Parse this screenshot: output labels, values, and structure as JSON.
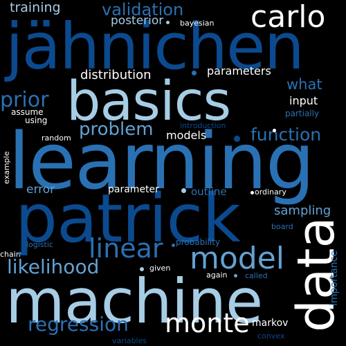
{
  "canvas": {
    "background": "#000000"
  },
  "palette": {
    "darkest": "#08306b",
    "dark": "#0b4a8f",
    "mid": "#2a71b3",
    "light": "#63a2d3",
    "pale": "#a7cde5",
    "white": "#ffffff"
  },
  "words": {
    "learning": "learning",
    "machine": "machine",
    "patrick": "patrick",
    "jahnichen": "jähnichen",
    "basics": "basics",
    "data": "data",
    "carlo": "carlo",
    "model": "model",
    "monte": "monte",
    "linear": "linear",
    "likelihood": "likelihood",
    "regression": "regression",
    "prior": "prior",
    "problem": "problem",
    "function": "function",
    "validation": "validation",
    "training": "training",
    "distribution": "distribution",
    "what": "what",
    "sampling": "sampling",
    "posterior": "posterior",
    "parameters": "parameters",
    "models": "models",
    "error": "error",
    "input": "input",
    "outline": "outline",
    "importance": "importance",
    "parameter": "parameter",
    "markov": "markov",
    "probability": "probability",
    "bayesian": "bayesian",
    "assume": "assume",
    "using": "using",
    "random": "random",
    "partially": "partially",
    "introduction": "introduction",
    "example": "example",
    "ordinary": "ordinary",
    "board": "board",
    "logistic": "logistic",
    "chain": "chain",
    "given": "given",
    "again": "again",
    "called": "called",
    "convex": "convex",
    "variables": "variables"
  }
}
